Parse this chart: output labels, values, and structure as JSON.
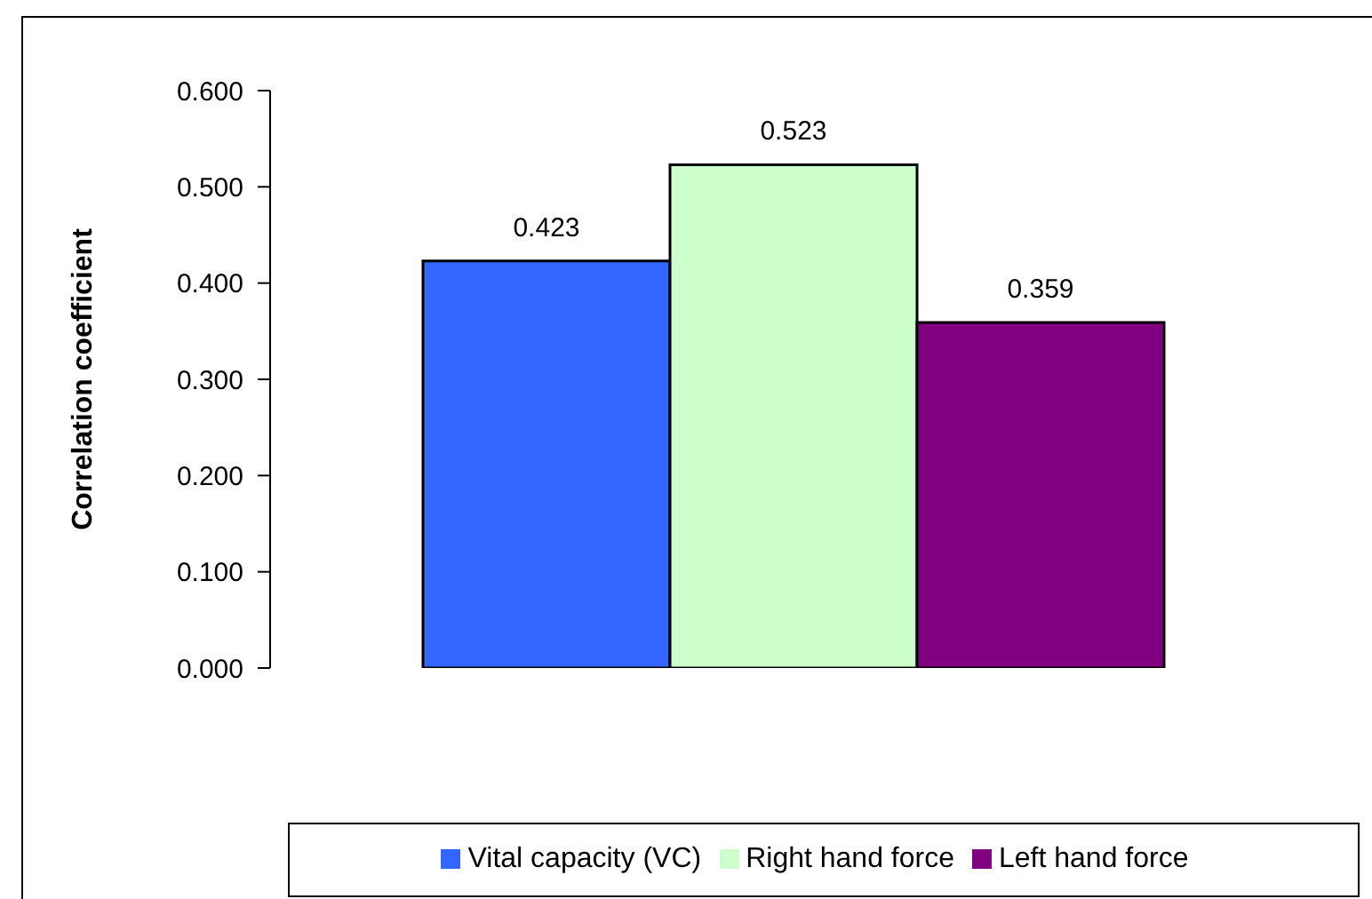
{
  "chart_data": {
    "type": "bar",
    "ylabel": "Correlation coefficient",
    "categories": [
      null
    ],
    "series": [
      {
        "name": "Vital capacity (VC)",
        "color": "#3366ff",
        "values": [
          0.423
        ]
      },
      {
        "name": "Right hand force",
        "color": "#ccffcc",
        "values": [
          0.523
        ]
      },
      {
        "name": "Left hand force",
        "color": "#800080",
        "values": [
          0.359
        ]
      }
    ],
    "ylim": [
      0,
      0.6
    ],
    "yticks": [
      {
        "value": 0,
        "label": "0.000"
      },
      {
        "value": 0.1,
        "label": "0.100"
      },
      {
        "value": 0.2,
        "label": "0.200"
      },
      {
        "value": 0.3,
        "label": "0.300"
      },
      {
        "value": 0.4,
        "label": "0.400"
      },
      {
        "value": 0.5,
        "label": "0.500"
      },
      {
        "value": 0.6,
        "label": "0.600"
      }
    ],
    "data_labels": true,
    "grid": false,
    "legend": "bottom"
  }
}
